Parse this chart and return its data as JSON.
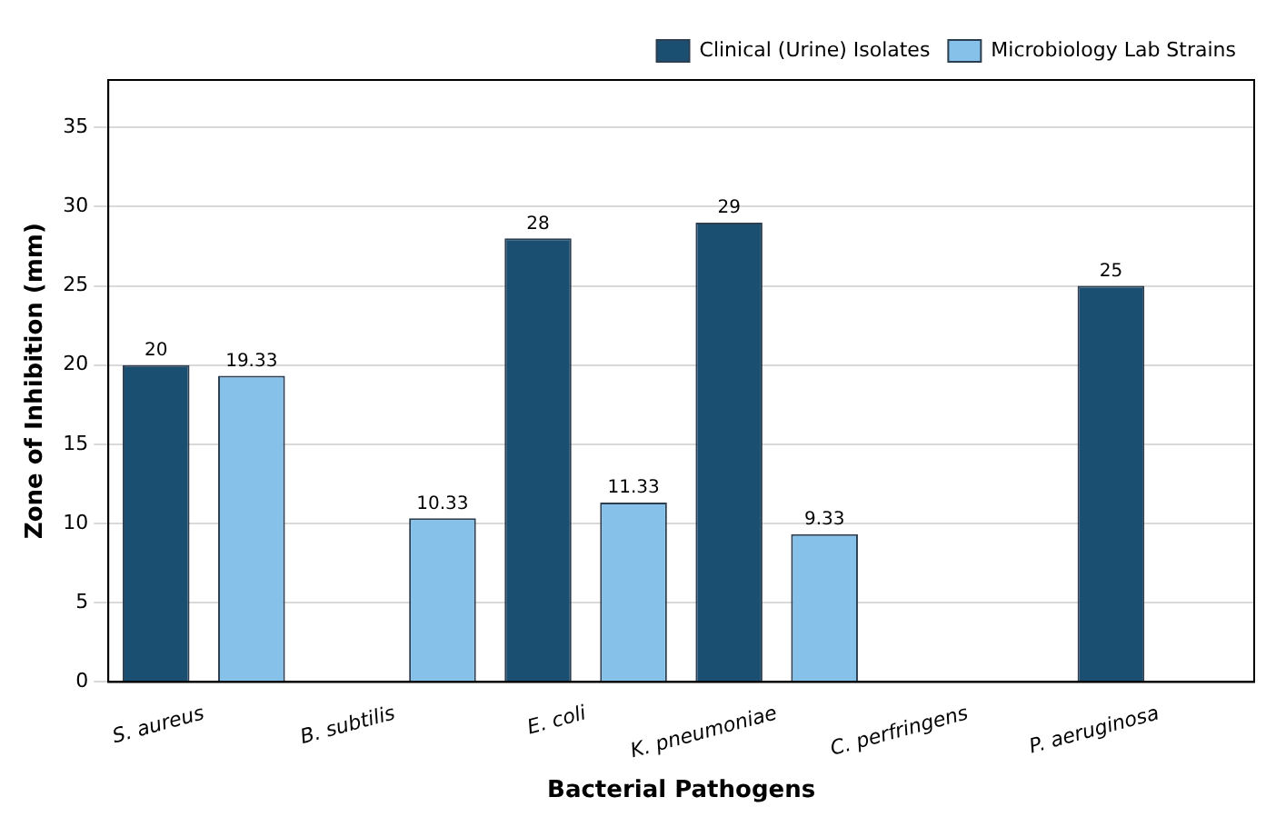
{
  "chart_data": {
    "type": "bar",
    "xlabel": "Bacterial Pathogens",
    "ylabel": "Zone of Inhibition (mm)",
    "categories": [
      "S. aureus",
      "B. subtilis",
      "E. coli",
      "K. pneumoniae",
      "C. perfringens",
      "P. aeruginosa"
    ],
    "series": [
      {
        "name": "Clinical (Urine) Isolates",
        "color": "#1b4f72",
        "values": [
          20,
          null,
          28,
          29,
          null,
          25
        ]
      },
      {
        "name": "Microbiology Lab Strains",
        "color": "#85c1e9",
        "values": [
          19.33,
          10.33,
          11.33,
          9.33,
          null,
          null
        ]
      }
    ],
    "ylim": [
      0,
      38
    ],
    "yticks": [
      0,
      5,
      10,
      15,
      20,
      25,
      30,
      35
    ],
    "grid": "y",
    "legend": "top right",
    "data_labels": true
  }
}
